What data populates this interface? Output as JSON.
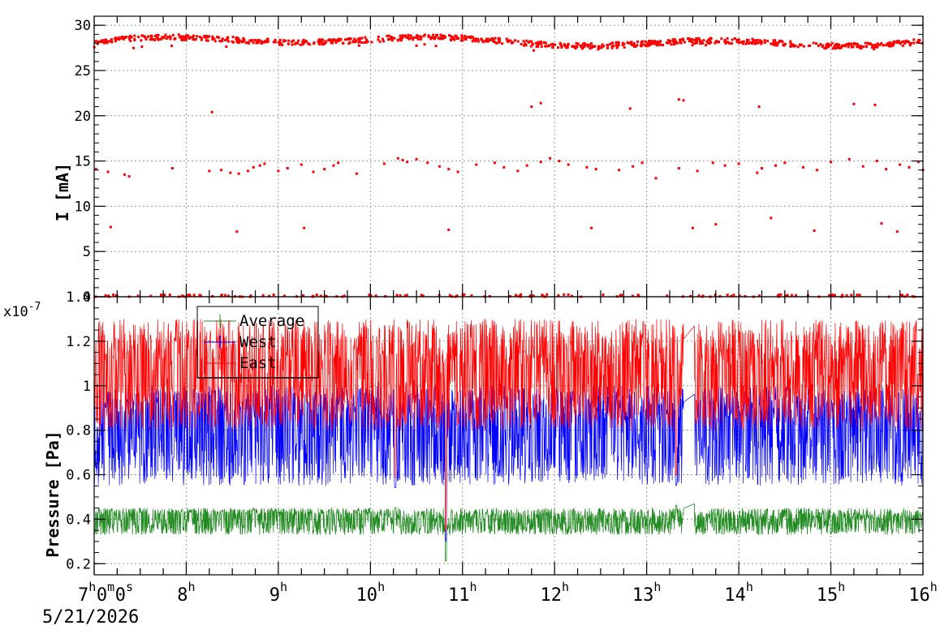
{
  "chart_data": [
    {
      "type": "scatter",
      "ylabel": "I [mA]",
      "ylim": [
        0,
        31
      ],
      "yticks": [
        0,
        5,
        10,
        15,
        20,
        25,
        30
      ],
      "grid": true,
      "series": [
        {
          "color": "#ff0000",
          "bands": [
            {
              "level": 28.2,
              "spread": 0.6,
              "points": 900
            },
            {
              "level": 0.1,
              "spread": 0.3,
              "points": 140
            }
          ],
          "x_hours": [
            7.02,
            7.15,
            7.33,
            7.38,
            7.85,
            8.25,
            8.38,
            8.48,
            8.57,
            8.67,
            8.73,
            8.8,
            8.85,
            9.0,
            9.1,
            9.25,
            9.38,
            9.5,
            9.6,
            9.65,
            9.85,
            10.15,
            10.3,
            10.35,
            10.4,
            10.5,
            10.62,
            10.75,
            10.85,
            10.95,
            11.15,
            11.35,
            11.45,
            11.6,
            11.7,
            11.85,
            11.95,
            12.05,
            12.15,
            12.35,
            12.45,
            12.7,
            12.85,
            12.95,
            13.1,
            13.35,
            13.55,
            13.72,
            13.85,
            14.0,
            14.2,
            14.25,
            14.4,
            14.5,
            14.7,
            14.85,
            15.0,
            15.2,
            15.35,
            15.5,
            15.6,
            15.75,
            15.85,
            15.95,
            16.0,
            7.18,
            8.55,
            9.28,
            10.85,
            12.4,
            13.5,
            13.75,
            14.35,
            14.82,
            15.55,
            15.72,
            8.28,
            11.75,
            11.85,
            12.82,
            13.35,
            13.4,
            14.22,
            15.25,
            15.48
          ],
          "y_values": [
            14.1,
            13.8,
            13.5,
            13.3,
            14.2,
            13.9,
            14.0,
            13.7,
            13.6,
            13.9,
            14.3,
            14.5,
            14.7,
            13.9,
            14.2,
            14.6,
            13.8,
            14.1,
            14.5,
            14.8,
            13.6,
            14.7,
            15.3,
            15.1,
            14.9,
            15.2,
            14.8,
            14.4,
            14.1,
            13.8,
            14.6,
            14.8,
            14.3,
            13.9,
            14.5,
            14.9,
            15.3,
            15.0,
            14.6,
            14.3,
            14.1,
            14.0,
            14.4,
            14.8,
            13.1,
            14.2,
            13.9,
            14.8,
            14.5,
            14.7,
            13.7,
            14.2,
            14.5,
            14.8,
            14.3,
            14.0,
            14.9,
            15.2,
            14.4,
            15.0,
            14.1,
            14.6,
            14.3,
            14.9,
            14.0,
            7.7,
            7.2,
            7.6,
            7.4,
            7.6,
            7.6,
            8.0,
            8.7,
            7.3,
            8.1,
            7.2,
            20.4,
            21.0,
            21.4,
            20.8,
            21.8,
            21.7,
            21.0,
            21.3,
            21.2
          ]
        }
      ]
    },
    {
      "type": "line",
      "ylabel": "Pressure [Pa]",
      "yexponent": "x10-7",
      "ylim": [
        0.15,
        1.4
      ],
      "yticks": [
        0.2,
        0.4,
        0.6,
        0.8,
        1,
        1.2,
        1.4
      ],
      "xlabel": "",
      "x_start": "7h0m0s",
      "x_date": "5/21/2026",
      "x_hour_ticks": [
        "8h",
        "9h",
        "10h",
        "11h",
        "12h",
        "13h",
        "14h",
        "15h",
        "16h"
      ],
      "xlim_hours": [
        7,
        16
      ],
      "grid": true,
      "legend_position": "top-left",
      "series": [
        {
          "name": "Average",
          "color": "#228b22",
          "base": 0.41,
          "low": 0.33,
          "high": 0.45
        },
        {
          "name": "West",
          "color": "#0000ff",
          "base": 0.86,
          "low": 0.55,
          "high": 1.0
        },
        {
          "name": "East",
          "color": "#ff0000",
          "base": 1.1,
          "low": 0.8,
          "high": 1.3
        }
      ],
      "events": [
        {
          "hour": 10.27,
          "depth": 0.45
        },
        {
          "hour": 10.82,
          "depth": 0.21
        },
        {
          "hour": 13.32,
          "depth": 0.46
        },
        {
          "hour": 13.5,
          "bump": 1.21
        }
      ]
    }
  ]
}
